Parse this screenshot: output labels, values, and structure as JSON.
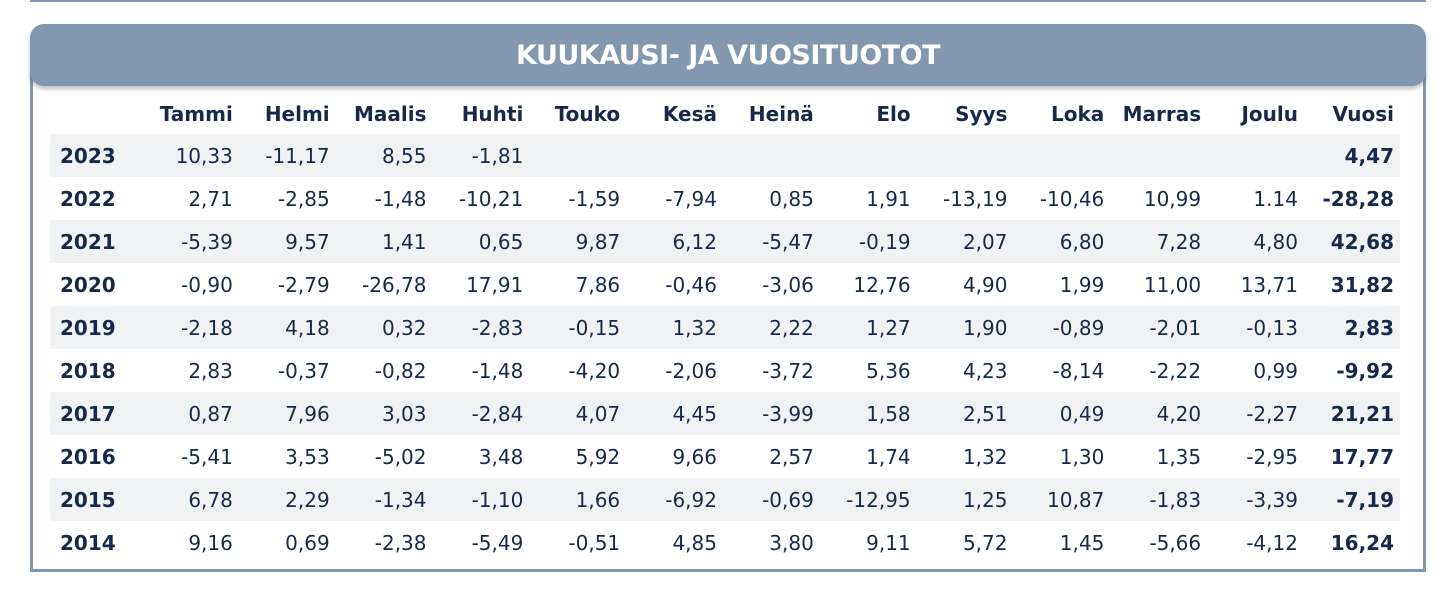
{
  "title": "KUUKAUSI- JA VUOSITUOTOT",
  "columns": [
    "",
    "Tammi",
    "Helmi",
    "Maalis",
    "Huhti",
    "Touko",
    "Kesä",
    "Heinä",
    "Elo",
    "Syys",
    "Loka",
    "Marras",
    "Joulu",
    "Vuosi"
  ],
  "rows": [
    {
      "year": "2023",
      "months": [
        "10,33",
        "-11,17",
        "8,55",
        "-1,81",
        "",
        "",
        "",
        "",
        "",
        "",
        "",
        ""
      ],
      "total": "4,47"
    },
    {
      "year": "2022",
      "months": [
        "2,71",
        "-2,85",
        "-1,48",
        "-10,21",
        "-1,59",
        "-7,94",
        "0,85",
        "1,91",
        "-13,19",
        "-10,46",
        "10,99",
        "1.14"
      ],
      "total": "-28,28"
    },
    {
      "year": "2021",
      "months": [
        "-5,39",
        "9,57",
        "1,41",
        "0,65",
        "9,87",
        "6,12",
        "-5,47",
        "-0,19",
        "2,07",
        "6,80",
        "7,28",
        "4,80"
      ],
      "total": "42,68"
    },
    {
      "year": "2020",
      "months": [
        "-0,90",
        "-2,79",
        "-26,78",
        "17,91",
        "7,86",
        "-0,46",
        "-3,06",
        "12,76",
        "4,90",
        "1,99",
        "11,00",
        "13,71"
      ],
      "total": "31,82"
    },
    {
      "year": "2019",
      "months": [
        "-2,18",
        "4,18",
        "0,32",
        "-2,83",
        "-0,15",
        "1,32",
        "2,22",
        "1,27",
        "1,90",
        "-0,89",
        "-2,01",
        "-0,13"
      ],
      "total": "2,83"
    },
    {
      "year": "2018",
      "months": [
        "2,83",
        "-0,37",
        "-0,82",
        "-1,48",
        "-4,20",
        "-2,06",
        "-3,72",
        "5,36",
        "4,23",
        "-8,14",
        "-2,22",
        "0,99"
      ],
      "total": "-9,92"
    },
    {
      "year": "2017",
      "months": [
        "0,87",
        "7,96",
        "3,03",
        "-2,84",
        "4,07",
        "4,45",
        "-3,99",
        "1,58",
        "2,51",
        "0,49",
        "4,20",
        "-2,27"
      ],
      "total": "21,21"
    },
    {
      "year": "2016",
      "months": [
        "-5,41",
        "3,53",
        "-5,02",
        "3,48",
        "5,92",
        "9,66",
        "2,57",
        "1,74",
        "1,32",
        "1,30",
        "1,35",
        "-2,95"
      ],
      "total": "17,77"
    },
    {
      "year": "2015",
      "months": [
        "6,78",
        "2,29",
        "-1,34",
        "-1,10",
        "1,66",
        "-6,92",
        "-0,69",
        "-12,95",
        "1,25",
        "10,87",
        "-1,83",
        "-3,39"
      ],
      "total": "-7,19"
    },
    {
      "year": "2014",
      "months": [
        "9,16",
        "0,69",
        "-2,38",
        "-5,49",
        "-0,51",
        "4,85",
        "3,80",
        "9,11",
        "5,72",
        "1,45",
        "-5,66",
        "-4,12"
      ],
      "total": "16,24"
    }
  ],
  "colors": {
    "header_bg": "#8497b0",
    "text": "#17294b",
    "stripe": "#f1f2f4"
  }
}
